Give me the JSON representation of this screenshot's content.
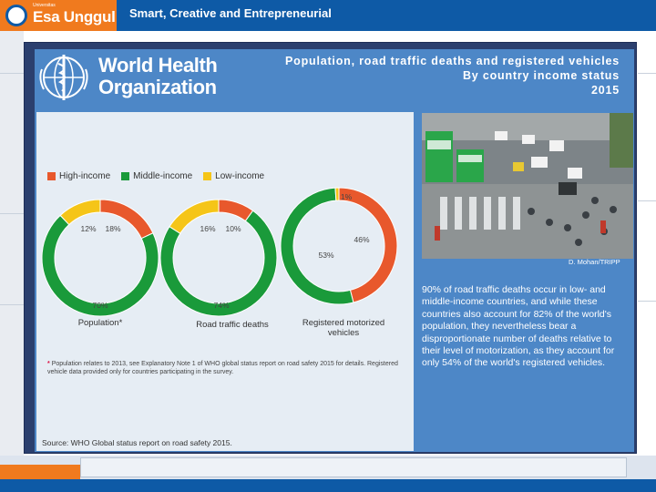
{
  "header": {
    "logo_small": "Universitas",
    "logo_name": "Esa Unggul",
    "tagline": "Smart, Creative and Entrepreneurial"
  },
  "slide": {
    "org_line1": "World Health",
    "org_line2": "Organization",
    "heading_line1": "Population, road traffic deaths and registered vehicles",
    "heading_line2": "By country income status",
    "heading_line3": "2015",
    "photo_credit": "D. Mohan/TRIPP",
    "body_text": "90% of road traffic deaths occur in low- and middle-income countries, and while these countries also account for 82% of the world's population, they nevertheless bear a disproportionate number of deaths relative to their level of motorization, as they account for only 54% of the world's registered vehicles.",
    "footnote_star": "*",
    "footnote": "Population relates to 2013, see Explanatory Note 1 of WHO global status report on road safety 2015 for details. Registered vehicle data provided only for countries participating in the survey.",
    "source": "Source: WHO Global status report on road safety 2015."
  },
  "colors": {
    "high": "#e8582c",
    "middle": "#1a9a3a",
    "low": "#f5c518"
  },
  "chart_data": [
    {
      "type": "pie",
      "title": "Population*",
      "legend": [
        "High-income",
        "Middle-income",
        "Low-income"
      ],
      "slices": [
        {
          "name": "High-income",
          "value": 18,
          "label": "18%"
        },
        {
          "name": "Middle-income",
          "value": 70,
          "label": "70%"
        },
        {
          "name": "Low-income",
          "value": 12,
          "label": "12%"
        }
      ]
    },
    {
      "type": "pie",
      "title": "Road traffic deaths",
      "legend": [
        "High-income",
        "Middle-income",
        "Low-income"
      ],
      "slices": [
        {
          "name": "High-income",
          "value": 10,
          "label": "10%"
        },
        {
          "name": "Middle-income",
          "value": 74,
          "label": "74%"
        },
        {
          "name": "Low-income",
          "value": 16,
          "label": "16%"
        }
      ]
    },
    {
      "type": "pie",
      "title": "Registered motorized vehicles",
      "legend": [
        "High-income",
        "Middle-income",
        "Low-income"
      ],
      "slices": [
        {
          "name": "High-income",
          "value": 46,
          "label": "46%"
        },
        {
          "name": "Middle-income",
          "value": 53,
          "label": "53%"
        },
        {
          "name": "Low-income",
          "value": 1,
          "label": "1%"
        }
      ]
    }
  ],
  "legend": {
    "high": "High-income",
    "middle": "Middle-income",
    "low": "Low-income"
  }
}
